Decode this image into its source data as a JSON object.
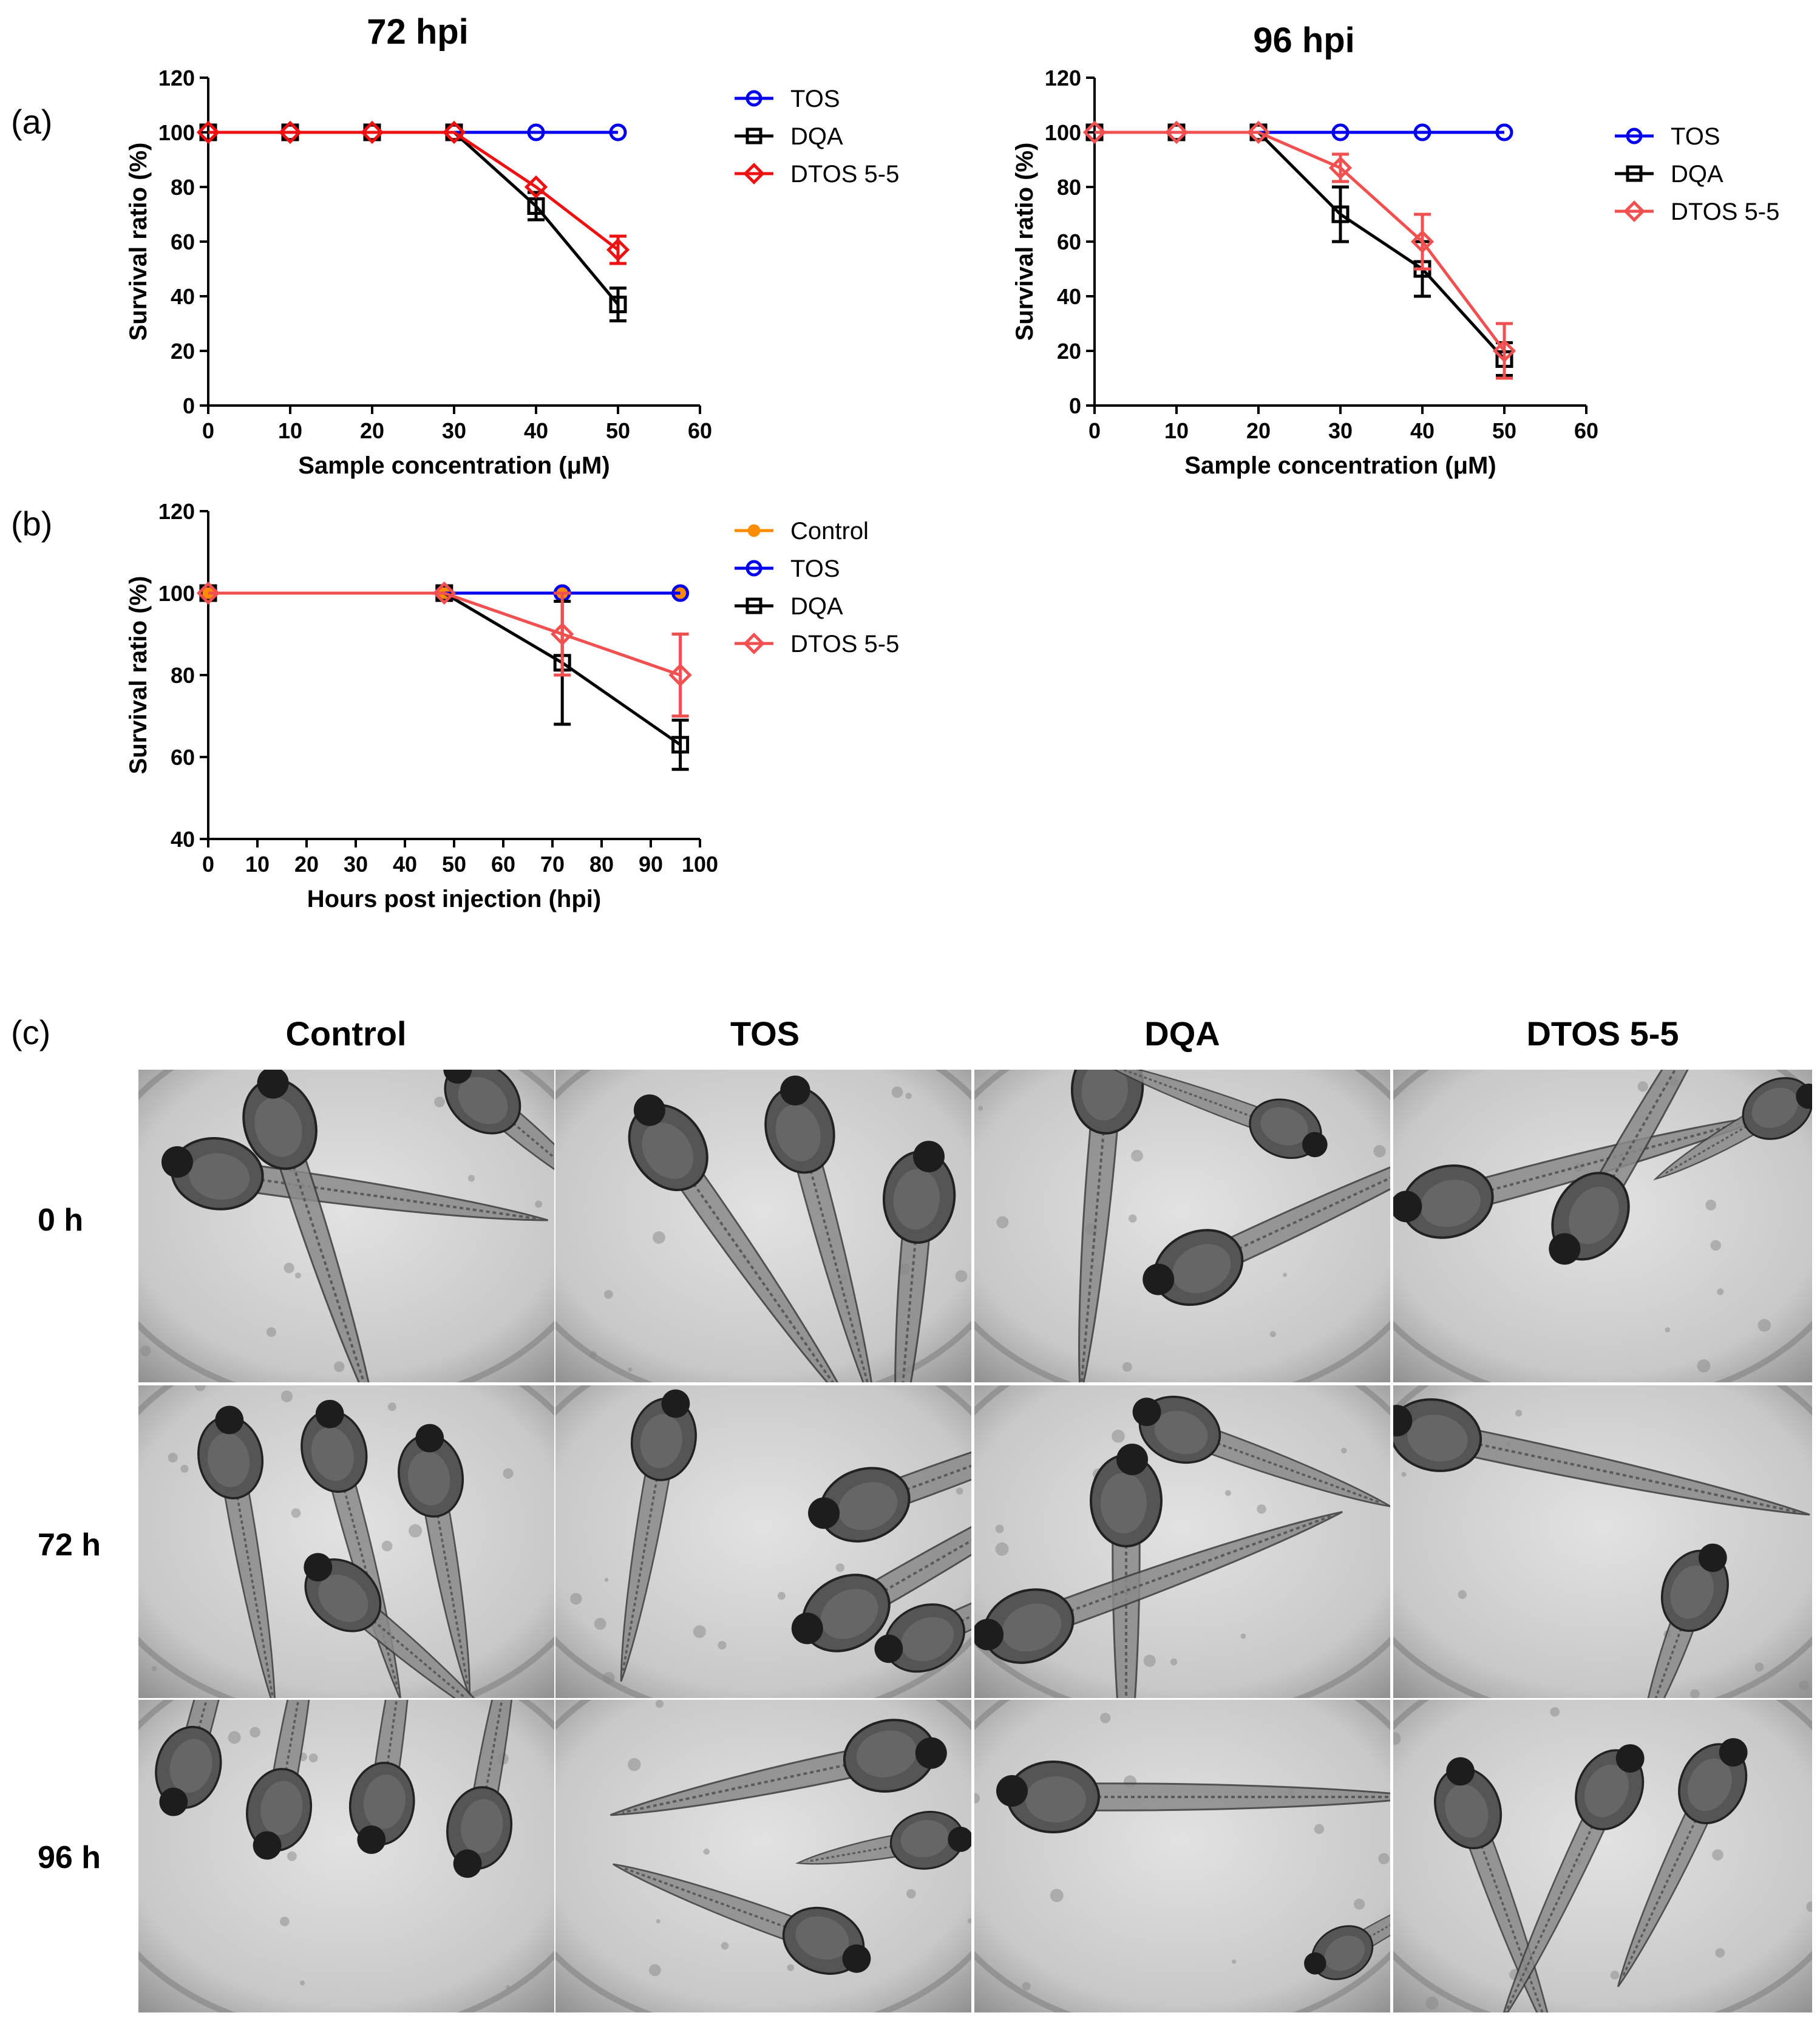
{
  "panel_labels": {
    "a": "(a)",
    "b": "(b)",
    "c": "(c)"
  },
  "colors": {
    "TOS": "#0000ee",
    "DQA": "#000000",
    "DTOS_a72": "#ee1111",
    "DTOS_light": "#f05050",
    "Control": "#ff8c00"
  },
  "chart_data": [
    {
      "id": "a72",
      "type": "line",
      "title": "72 hpi",
      "xlabel": "Sample concentration (μM)",
      "ylabel": "Survival ratio (%)",
      "xlim": [
        0,
        60
      ],
      "ylim": [
        0,
        120
      ],
      "xticks": [
        0,
        10,
        20,
        30,
        40,
        50,
        60
      ],
      "yticks": [
        0,
        20,
        40,
        60,
        80,
        100,
        120
      ],
      "legend": "right",
      "series": [
        {
          "name": "TOS",
          "marker": "circle",
          "color": "#0000ee",
          "x": [
            0,
            10,
            20,
            30,
            40,
            50
          ],
          "y": [
            100,
            100,
            100,
            100,
            100,
            100
          ],
          "err": [
            0,
            0,
            0,
            0,
            0,
            0
          ]
        },
        {
          "name": "DQA",
          "marker": "square",
          "color": "#000000",
          "x": [
            0,
            10,
            20,
            30,
            40,
            50
          ],
          "y": [
            100,
            100,
            100,
            100,
            73,
            37
          ],
          "err": [
            0,
            0,
            0,
            0,
            5,
            6
          ]
        },
        {
          "name": "DTOS 5-5",
          "marker": "diamond",
          "color": "#ee1111",
          "x": [
            0,
            10,
            20,
            30,
            40,
            50
          ],
          "y": [
            100,
            100,
            100,
            100,
            80,
            57
          ],
          "err": [
            0,
            0,
            0,
            0,
            0,
            5
          ]
        }
      ]
    },
    {
      "id": "a96",
      "type": "line",
      "title": "96 hpi",
      "xlabel": "Sample concentration (μM)",
      "ylabel": "Survival ratio (%)",
      "xlim": [
        0,
        60
      ],
      "ylim": [
        0,
        120
      ],
      "xticks": [
        0,
        10,
        20,
        30,
        40,
        50,
        60
      ],
      "yticks": [
        0,
        20,
        40,
        60,
        80,
        100,
        120
      ],
      "legend": "right",
      "series": [
        {
          "name": "TOS",
          "marker": "circle",
          "color": "#0000ee",
          "x": [
            0,
            10,
            20,
            30,
            40,
            50
          ],
          "y": [
            100,
            100,
            100,
            100,
            100,
            100
          ],
          "err": [
            0,
            0,
            0,
            0,
            0,
            0
          ]
        },
        {
          "name": "DQA",
          "marker": "square",
          "color": "#000000",
          "x": [
            0,
            10,
            20,
            30,
            40,
            50
          ],
          "y": [
            100,
            100,
            100,
            70,
            50,
            17
          ],
          "err": [
            0,
            0,
            0,
            10,
            10,
            6
          ]
        },
        {
          "name": "DTOS 5-5",
          "marker": "diamond",
          "color": "#f05050",
          "x": [
            0,
            10,
            20,
            30,
            40,
            50
          ],
          "y": [
            100,
            100,
            100,
            87,
            60,
            20
          ],
          "err": [
            0,
            0,
            0,
            5,
            10,
            10
          ]
        }
      ]
    },
    {
      "id": "b",
      "type": "line",
      "title": "",
      "xlabel": "Hours post injection (hpi)",
      "ylabel": "Survival ratio (%)",
      "xlim": [
        0,
        100
      ],
      "ylim": [
        40,
        120
      ],
      "xticks": [
        0,
        10,
        20,
        30,
        40,
        50,
        60,
        70,
        80,
        90,
        100
      ],
      "yticks": [
        40,
        60,
        80,
        100,
        120
      ],
      "legend": "right",
      "series": [
        {
          "name": "Control",
          "marker": "dot",
          "color": "#ff8c00",
          "x": [
            0,
            48,
            72,
            96
          ],
          "y": [
            100,
            100,
            100,
            100
          ],
          "err": [
            0,
            0,
            0,
            0
          ]
        },
        {
          "name": "TOS",
          "marker": "circle",
          "color": "#0000ee",
          "x": [
            0,
            48,
            72,
            96
          ],
          "y": [
            100,
            100,
            100,
            100
          ],
          "err": [
            0,
            0,
            0,
            0
          ]
        },
        {
          "name": "DQA",
          "marker": "square",
          "color": "#000000",
          "x": [
            0,
            48,
            72,
            96
          ],
          "y": [
            100,
            100,
            83,
            63
          ],
          "err": [
            0,
            0,
            15,
            6
          ]
        },
        {
          "name": "DTOS 5-5",
          "marker": "diamond",
          "color": "#f05050",
          "x": [
            0,
            48,
            72,
            96
          ],
          "y": [
            100,
            100,
            90,
            80
          ],
          "err": [
            0,
            0,
            10,
            10
          ]
        }
      ]
    }
  ],
  "panel_c": {
    "columns": [
      "Control",
      "TOS",
      "DQA",
      "DTOS 5-5"
    ],
    "rows": [
      "0 h",
      "72 h",
      "96 h"
    ]
  }
}
